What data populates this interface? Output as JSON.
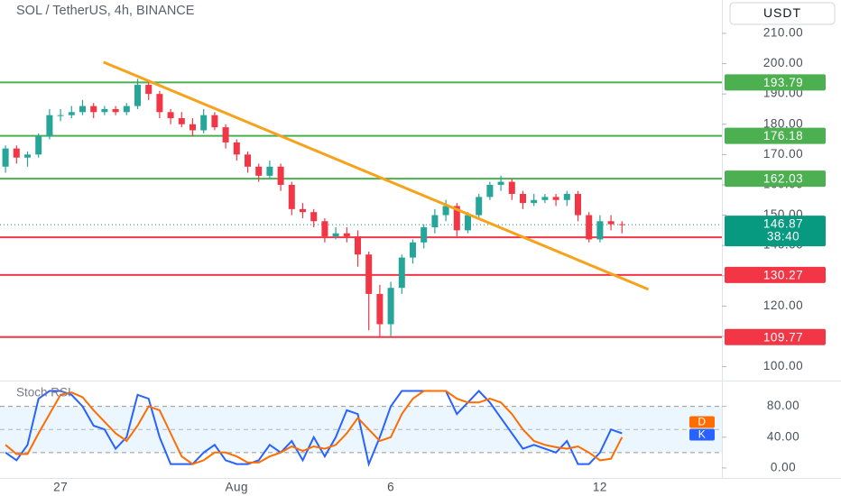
{
  "chart_data": [
    {
      "type": "candlestick",
      "title": "SOL / TetherUS, 4h, BINANCE",
      "currency": "USDT",
      "categories": [
        null,
        null,
        null,
        null,
        null,
        "27",
        null,
        null,
        null,
        null,
        null,
        null,
        null,
        null,
        null,
        null,
        null,
        null,
        null,
        null,
        null,
        "Aug",
        null,
        null,
        null,
        null,
        null,
        null,
        null,
        null,
        null,
        null,
        null,
        null,
        null,
        "6",
        null,
        null,
        null,
        null,
        null,
        null,
        null,
        null,
        null,
        null,
        null,
        null,
        null,
        null,
        null,
        null,
        null,
        null,
        "12",
        null,
        null
      ],
      "open": [
        166,
        172,
        169,
        170,
        176,
        183,
        183,
        184,
        186,
        184,
        185,
        184,
        186,
        193,
        190,
        184,
        182,
        180,
        178,
        183,
        179,
        174,
        170,
        166,
        163,
        166,
        160,
        152,
        151,
        148,
        143,
        144,
        143,
        137,
        124,
        114,
        126,
        136,
        141,
        146,
        150,
        153,
        145,
        150,
        156,
        160,
        161,
        157,
        154,
        155,
        156,
        155,
        157,
        150,
        142,
        148,
        147
      ],
      "high": [
        173,
        173,
        171,
        177,
        185,
        185,
        186,
        188,
        187,
        186,
        186,
        187,
        195,
        194,
        191,
        185,
        184,
        182,
        185,
        184,
        180,
        175,
        171,
        167,
        168,
        167,
        161,
        154,
        152,
        149,
        146,
        146,
        145,
        138,
        127,
        128,
        137,
        142,
        147,
        152,
        155,
        154,
        151,
        157,
        161,
        163,
        162,
        158,
        157,
        157,
        157,
        158,
        158,
        151,
        150,
        150,
        148
      ],
      "low": [
        164,
        167,
        166,
        169,
        175,
        181,
        182,
        183,
        182,
        183,
        183,
        183,
        185,
        188,
        182,
        180,
        179,
        176,
        177,
        178,
        172,
        168,
        164,
        161,
        162,
        158,
        150,
        149,
        146,
        141,
        142,
        141,
        133,
        112,
        109.8,
        110,
        124,
        134,
        139,
        144,
        148,
        143,
        144,
        149,
        155,
        158,
        155,
        152,
        153,
        154,
        153,
        153,
        148,
        141,
        141,
        145,
        144
      ],
      "close": [
        172,
        169,
        170,
        176,
        183,
        183,
        184,
        186,
        184,
        185,
        184,
        186,
        193,
        190,
        184,
        182,
        180,
        178,
        183,
        179,
        174,
        170,
        166,
        163,
        166,
        160,
        152,
        151,
        148,
        143,
        144,
        143,
        137,
        124,
        114,
        126,
        136,
        141,
        146,
        150,
        153,
        145,
        150,
        156,
        160,
        161,
        157,
        154,
        155,
        156,
        155,
        157,
        150,
        142,
        148,
        147,
        146.87
      ],
      "up_color": "#26a69a",
      "down_color": "#f23645",
      "ylim": [
        96,
        221
      ],
      "yticks": [
        {
          "value": 100,
          "label": "100.00"
        },
        {
          "value": 110,
          "label": "110.00"
        },
        {
          "value": 120,
          "label": "120.00"
        },
        {
          "value": 130,
          "label": "130.00"
        },
        {
          "value": 140,
          "label": "140.00"
        },
        {
          "value": 150,
          "label": "150.00"
        },
        {
          "value": 160,
          "label": "160.00"
        },
        {
          "value": 170,
          "label": "170.00"
        },
        {
          "value": 180,
          "label": "180.00"
        },
        {
          "value": 190,
          "label": "190.00"
        },
        {
          "value": 200,
          "label": "200.00"
        },
        {
          "value": 210,
          "label": "210.00"
        }
      ],
      "hlines": [
        {
          "value": 193.79,
          "color": "#4caf50"
        },
        {
          "value": 176.18,
          "color": "#4caf50"
        },
        {
          "value": 162.03,
          "color": "#4caf50"
        },
        {
          "value": 142.69,
          "color": "#f23645"
        },
        {
          "value": 130.27,
          "color": "#f23645"
        },
        {
          "value": 109.77,
          "color": "#f23645"
        }
      ],
      "last_price": {
        "value": 146.87,
        "countdown": "38:40",
        "color": "#089981"
      },
      "trendline": {
        "color": "#f7a21b",
        "x": [
          8.9,
          58.4
        ],
        "y": [
          200.5,
          125.5
        ]
      }
    },
    {
      "type": "line",
      "title": "Stoch RSI",
      "series": [
        {
          "name": "K",
          "color": "#2962ff",
          "values": [
            20,
            10,
            30,
            90,
            100,
            100,
            95,
            80,
            55,
            50,
            25,
            40,
            95,
            90,
            40,
            5,
            5,
            5,
            20,
            30,
            10,
            5,
            5,
            10,
            30,
            20,
            35,
            10,
            40,
            15,
            40,
            75,
            70,
            5,
            40,
            80,
            100,
            100,
            100,
            100,
            100,
            70,
            85,
            100,
            85,
            65,
            45,
            25,
            30,
            25,
            20,
            35,
            5,
            5,
            20,
            50,
            45
          ]
        },
        {
          "name": "D",
          "color": "#ff6d00",
          "values": [
            30,
            18,
            18,
            45,
            70,
            95,
            98,
            92,
            75,
            60,
            45,
            35,
            55,
            80,
            75,
            45,
            15,
            5,
            10,
            20,
            20,
            15,
            7,
            7,
            15,
            20,
            28,
            22,
            28,
            25,
            30,
            45,
            65,
            50,
            35,
            40,
            70,
            90,
            100,
            100,
            100,
            90,
            85,
            85,
            90,
            85,
            70,
            50,
            35,
            30,
            27,
            25,
            28,
            20,
            10,
            12,
            40
          ]
        }
      ],
      "ylim": [
        -13,
        110
      ],
      "yticks": [
        {
          "value": 0,
          "label": "0.00"
        },
        {
          "value": 40,
          "label": "40.00"
        },
        {
          "value": 80,
          "label": "80.00"
        }
      ],
      "band": [
        20,
        80
      ],
      "midline": 50
    }
  ]
}
